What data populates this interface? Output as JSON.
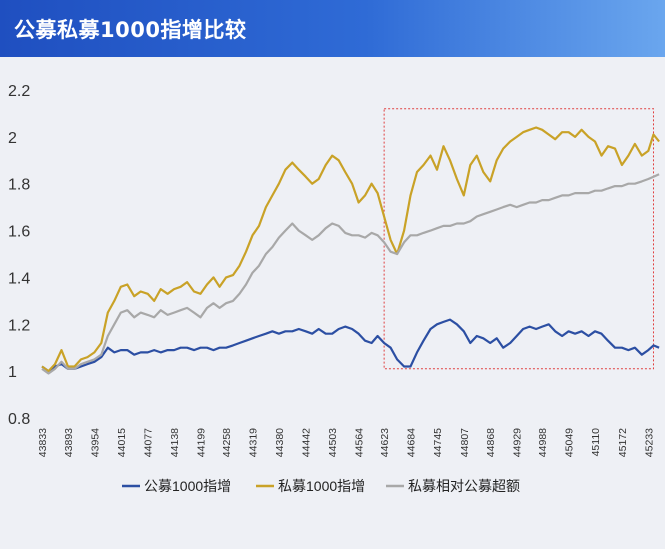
{
  "header": {
    "title": "公募私募1000指增比较"
  },
  "chart_data": {
    "type": "line",
    "title": "公募私募1000指增比较",
    "xlabel": "",
    "ylabel": "",
    "ylim": [
      0.8,
      2.2
    ],
    "yticks": [
      "0.8",
      "1",
      "1.2",
      "1.4",
      "1.6",
      "1.8",
      "2",
      "2.2"
    ],
    "xlim": [
      43833,
      45260
    ],
    "xticks": [
      "43833",
      "43893",
      "43954",
      "44015",
      "44077",
      "44138",
      "44199",
      "44258",
      "44319",
      "44380",
      "44442",
      "44503",
      "44564",
      "44623",
      "44684",
      "44745",
      "44807",
      "44868",
      "44929",
      "44988",
      "45049",
      "45110",
      "45172",
      "45233"
    ],
    "legend_position": "bottom",
    "grid": false,
    "highlight_box": {
      "x": [
        44623,
        45245
      ],
      "y": [
        1.01,
        2.12
      ],
      "color": "#e04040"
    },
    "series": [
      {
        "name": "公募1000指增",
        "color": "#2c4fa3",
        "x": [
          43833,
          43848,
          43863,
          43878,
          43893,
          43908,
          43923,
          43938,
          43954,
          43970,
          43985,
          44000,
          44015,
          44030,
          44046,
          44061,
          44077,
          44092,
          44107,
          44123,
          44138,
          44153,
          44168,
          44184,
          44199,
          44214,
          44229,
          44243,
          44258,
          44274,
          44289,
          44304,
          44319,
          44334,
          44350,
          44365,
          44380,
          44395,
          44411,
          44426,
          44442,
          44457,
          44472,
          44488,
          44503,
          44518,
          44533,
          44549,
          44564,
          44579,
          44594,
          44608,
          44623,
          44638,
          44653,
          44669,
          44684,
          44699,
          44714,
          44730,
          44745,
          44760,
          44775,
          44791,
          44807,
          44822,
          44837,
          44852,
          44868,
          44883,
          44898,
          44914,
          44929,
          44944,
          44959,
          44974,
          44988,
          45003,
          45018,
          45034,
          45049,
          45064,
          45079,
          45095,
          45110,
          45125,
          45140,
          45156,
          45172,
          45187,
          45202,
          45218,
          45233,
          45245,
          45258
        ],
        "values": [
          1.02,
          1.0,
          1.02,
          1.03,
          1.01,
          1.01,
          1.02,
          1.03,
          1.04,
          1.06,
          1.1,
          1.08,
          1.09,
          1.09,
          1.07,
          1.08,
          1.08,
          1.09,
          1.08,
          1.09,
          1.09,
          1.1,
          1.1,
          1.09,
          1.1,
          1.1,
          1.09,
          1.1,
          1.1,
          1.11,
          1.12,
          1.13,
          1.14,
          1.15,
          1.16,
          1.17,
          1.16,
          1.17,
          1.17,
          1.18,
          1.17,
          1.16,
          1.18,
          1.16,
          1.16,
          1.18,
          1.19,
          1.18,
          1.16,
          1.13,
          1.12,
          1.15,
          1.12,
          1.1,
          1.05,
          1.02,
          1.02,
          1.08,
          1.13,
          1.18,
          1.2,
          1.21,
          1.22,
          1.2,
          1.17,
          1.12,
          1.15,
          1.14,
          1.12,
          1.14,
          1.1,
          1.12,
          1.15,
          1.18,
          1.19,
          1.18,
          1.19,
          1.2,
          1.17,
          1.15,
          1.17,
          1.16,
          1.17,
          1.15,
          1.17,
          1.16,
          1.13,
          1.1,
          1.1,
          1.09,
          1.1,
          1.07,
          1.09,
          1.11,
          1.1
        ]
      },
      {
        "name": "私募1000指增",
        "color": "#c9a227",
        "x": [
          43833,
          43848,
          43863,
          43878,
          43893,
          43908,
          43923,
          43938,
          43954,
          43970,
          43985,
          44000,
          44015,
          44030,
          44046,
          44061,
          44077,
          44092,
          44107,
          44123,
          44138,
          44153,
          44168,
          44184,
          44199,
          44214,
          44229,
          44243,
          44258,
          44274,
          44289,
          44304,
          44319,
          44334,
          44350,
          44365,
          44380,
          44395,
          44411,
          44426,
          44442,
          44457,
          44472,
          44488,
          44503,
          44518,
          44533,
          44549,
          44564,
          44579,
          44594,
          44608,
          44623,
          44638,
          44653,
          44669,
          44684,
          44699,
          44714,
          44730,
          44745,
          44760,
          44775,
          44791,
          44807,
          44822,
          44837,
          44852,
          44868,
          44883,
          44898,
          44914,
          44929,
          44944,
          44959,
          44974,
          44988,
          45003,
          45018,
          45034,
          45049,
          45064,
          45079,
          45095,
          45110,
          45125,
          45140,
          45156,
          45172,
          45187,
          45202,
          45218,
          45233,
          45245,
          45258
        ],
        "values": [
          1.02,
          1.0,
          1.03,
          1.09,
          1.02,
          1.02,
          1.05,
          1.06,
          1.08,
          1.12,
          1.25,
          1.3,
          1.36,
          1.37,
          1.32,
          1.34,
          1.33,
          1.3,
          1.35,
          1.33,
          1.35,
          1.36,
          1.38,
          1.34,
          1.33,
          1.37,
          1.4,
          1.36,
          1.4,
          1.41,
          1.45,
          1.51,
          1.58,
          1.62,
          1.7,
          1.75,
          1.8,
          1.86,
          1.89,
          1.86,
          1.83,
          1.8,
          1.82,
          1.88,
          1.92,
          1.9,
          1.85,
          1.8,
          1.72,
          1.75,
          1.8,
          1.76,
          1.66,
          1.56,
          1.5,
          1.6,
          1.75,
          1.85,
          1.88,
          1.92,
          1.86,
          1.96,
          1.9,
          1.82,
          1.75,
          1.88,
          1.92,
          1.85,
          1.81,
          1.9,
          1.95,
          1.98,
          2.0,
          2.02,
          2.03,
          2.04,
          2.03,
          2.01,
          1.99,
          2.02,
          2.02,
          2.0,
          2.03,
          2.0,
          1.98,
          1.92,
          1.96,
          1.95,
          1.88,
          1.92,
          1.97,
          1.92,
          1.94,
          2.01,
          1.98
        ]
      },
      {
        "name": "私募相对公募超额",
        "color": "#a8a8a8",
        "x": [
          43833,
          43848,
          43863,
          43878,
          43893,
          43908,
          43923,
          43938,
          43954,
          43970,
          43985,
          44000,
          44015,
          44030,
          44046,
          44061,
          44077,
          44092,
          44107,
          44123,
          44138,
          44153,
          44168,
          44184,
          44199,
          44214,
          44229,
          44243,
          44258,
          44274,
          44289,
          44304,
          44319,
          44334,
          44350,
          44365,
          44380,
          44395,
          44411,
          44426,
          44442,
          44457,
          44472,
          44488,
          44503,
          44518,
          44533,
          44549,
          44564,
          44579,
          44594,
          44608,
          44623,
          44638,
          44653,
          44669,
          44684,
          44699,
          44714,
          44730,
          44745,
          44760,
          44775,
          44791,
          44807,
          44822,
          44837,
          44852,
          44868,
          44883,
          44898,
          44914,
          44929,
          44944,
          44959,
          44974,
          44988,
          45003,
          45018,
          45034,
          45049,
          45064,
          45079,
          45095,
          45110,
          45125,
          45140,
          45156,
          45172,
          45187,
          45202,
          45218,
          45233,
          45245,
          45258
        ],
        "values": [
          1.01,
          0.99,
          1.01,
          1.04,
          1.01,
          1.01,
          1.03,
          1.04,
          1.05,
          1.07,
          1.15,
          1.2,
          1.25,
          1.26,
          1.23,
          1.25,
          1.24,
          1.23,
          1.26,
          1.24,
          1.25,
          1.26,
          1.27,
          1.25,
          1.23,
          1.27,
          1.29,
          1.27,
          1.29,
          1.3,
          1.33,
          1.37,
          1.42,
          1.45,
          1.5,
          1.53,
          1.57,
          1.6,
          1.63,
          1.6,
          1.58,
          1.56,
          1.58,
          1.61,
          1.63,
          1.62,
          1.59,
          1.58,
          1.58,
          1.57,
          1.59,
          1.58,
          1.55,
          1.51,
          1.5,
          1.55,
          1.58,
          1.58,
          1.59,
          1.6,
          1.61,
          1.62,
          1.62,
          1.63,
          1.63,
          1.64,
          1.66,
          1.67,
          1.68,
          1.69,
          1.7,
          1.71,
          1.7,
          1.71,
          1.72,
          1.72,
          1.73,
          1.73,
          1.74,
          1.75,
          1.75,
          1.76,
          1.76,
          1.76,
          1.77,
          1.77,
          1.78,
          1.79,
          1.79,
          1.8,
          1.8,
          1.81,
          1.82,
          1.83,
          1.84
        ]
      }
    ]
  }
}
